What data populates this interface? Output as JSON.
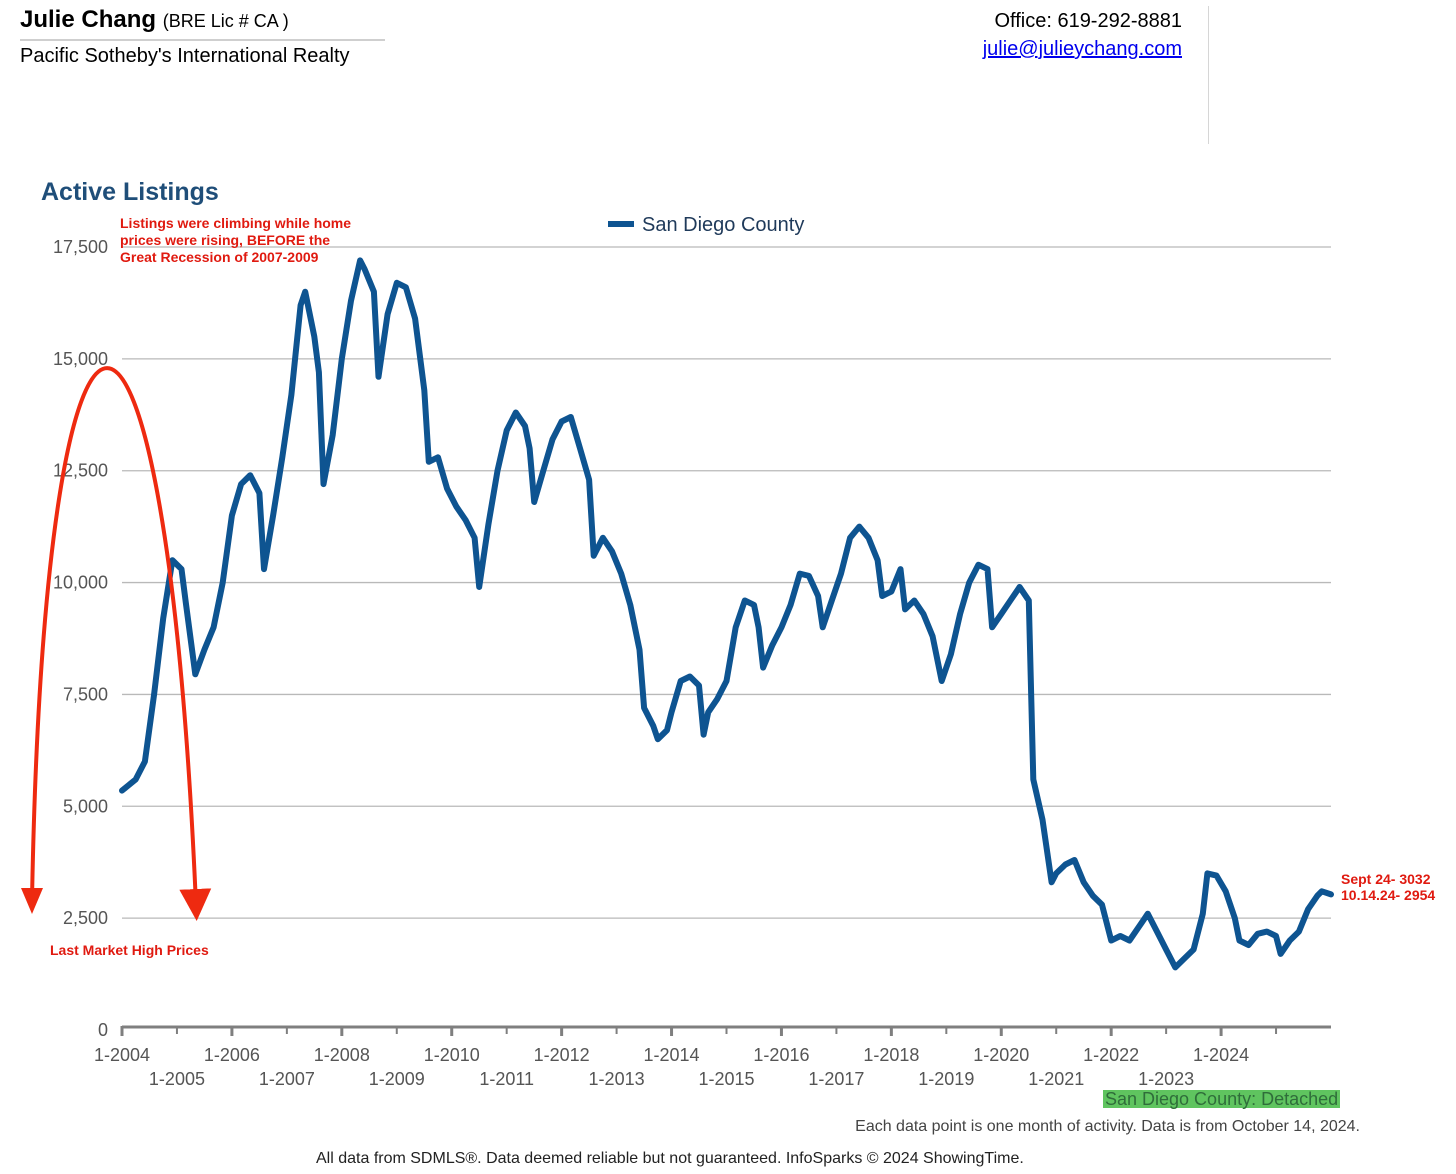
{
  "header": {
    "agent_name": "Julie Chang",
    "license": "(BRE Lic # CA )",
    "brokerage": "Pacific Sotheby's International Realty",
    "office_phone": "Office: 619-292-8881",
    "email": "julie@julieychang.com"
  },
  "annotations": {
    "top_note": [
      "Listings were climbing while home",
      "prices were rising, BEFORE the",
      "Great Recession of 2007-2009"
    ],
    "bottom_note": "Last Market High Prices",
    "end_note": [
      "Sept 24- 3032",
      "10.14.24- 2954"
    ],
    "accent_color": "#e01a10"
  },
  "footer": {
    "source_tag": "San Diego County: Detached",
    "note_monthly": "Each data point is one month of activity. Data is from October 14, 2024.",
    "disclaimer": "All data from SDMLS®. Data deemed reliable but not guaranteed. InfoSparks © 2024 ShowingTime."
  },
  "chart_data": {
    "type": "line",
    "title": "Active Listings",
    "series": [
      {
        "name": "San Diego County",
        "color": "#0e5491",
        "points": [
          [
            "2004-01",
            5350
          ],
          [
            "2004-04",
            5600
          ],
          [
            "2004-06",
            6000
          ],
          [
            "2004-08",
            7500
          ],
          [
            "2004-10",
            9200
          ],
          [
            "2004-12",
            10500
          ],
          [
            "2005-02",
            10300
          ],
          [
            "2005-03",
            9500
          ],
          [
            "2005-05",
            7950
          ],
          [
            "2005-07",
            8500
          ],
          [
            "2005-09",
            9000
          ],
          [
            "2005-11",
            10000
          ],
          [
            "2006-01",
            11500
          ],
          [
            "2006-03",
            12200
          ],
          [
            "2006-05",
            12400
          ],
          [
            "2006-07",
            12000
          ],
          [
            "2006-08",
            10300
          ],
          [
            "2006-10",
            11500
          ],
          [
            "2006-12",
            12800
          ],
          [
            "2007-02",
            14200
          ],
          [
            "2007-04",
            16200
          ],
          [
            "2007-05",
            16500
          ],
          [
            "2007-07",
            15500
          ],
          [
            "2007-08",
            14700
          ],
          [
            "2007-09",
            12200
          ],
          [
            "2007-11",
            13300
          ],
          [
            "2008-01",
            15000
          ],
          [
            "2008-03",
            16300
          ],
          [
            "2008-05",
            17200
          ],
          [
            "2008-06",
            17000
          ],
          [
            "2008-08",
            16500
          ],
          [
            "2008-09",
            14600
          ],
          [
            "2008-11",
            16000
          ],
          [
            "2009-01",
            16700
          ],
          [
            "2009-03",
            16600
          ],
          [
            "2009-05",
            15900
          ],
          [
            "2009-07",
            14300
          ],
          [
            "2009-08",
            12700
          ],
          [
            "2009-10",
            12800
          ],
          [
            "2009-12",
            12100
          ],
          [
            "2010-02",
            11700
          ],
          [
            "2010-04",
            11400
          ],
          [
            "2010-06",
            11000
          ],
          [
            "2010-07",
            9900
          ],
          [
            "2010-09",
            11300
          ],
          [
            "2010-11",
            12500
          ],
          [
            "2011-01",
            13400
          ],
          [
            "2011-03",
            13800
          ],
          [
            "2011-05",
            13500
          ],
          [
            "2011-06",
            13000
          ],
          [
            "2011-07",
            11800
          ],
          [
            "2011-09",
            12500
          ],
          [
            "2011-11",
            13200
          ],
          [
            "2012-01",
            13600
          ],
          [
            "2012-03",
            13700
          ],
          [
            "2012-05",
            13000
          ],
          [
            "2012-07",
            12300
          ],
          [
            "2012-08",
            10600
          ],
          [
            "2012-10",
            11000
          ],
          [
            "2012-12",
            10700
          ],
          [
            "2013-02",
            10200
          ],
          [
            "2013-04",
            9500
          ],
          [
            "2013-06",
            8500
          ],
          [
            "2013-07",
            7200
          ],
          [
            "2013-09",
            6800
          ],
          [
            "2013-10",
            6500
          ],
          [
            "2013-12",
            6700
          ],
          [
            "2014-01",
            7100
          ],
          [
            "2014-03",
            7800
          ],
          [
            "2014-05",
            7900
          ],
          [
            "2014-07",
            7700
          ],
          [
            "2014-08",
            6600
          ],
          [
            "2014-09",
            7100
          ],
          [
            "2014-11",
            7400
          ],
          [
            "2015-01",
            7800
          ],
          [
            "2015-03",
            9000
          ],
          [
            "2015-05",
            9600
          ],
          [
            "2015-07",
            9500
          ],
          [
            "2015-08",
            9000
          ],
          [
            "2015-09",
            8100
          ],
          [
            "2015-11",
            8600
          ],
          [
            "2016-01",
            9000
          ],
          [
            "2016-03",
            9500
          ],
          [
            "2016-05",
            10200
          ],
          [
            "2016-07",
            10150
          ],
          [
            "2016-09",
            9700
          ],
          [
            "2016-10",
            9000
          ],
          [
            "2016-12",
            9600
          ],
          [
            "2017-02",
            10200
          ],
          [
            "2017-04",
            11000
          ],
          [
            "2017-06",
            11250
          ],
          [
            "2017-08",
            11000
          ],
          [
            "2017-10",
            10500
          ],
          [
            "2017-11",
            9700
          ],
          [
            "2018-01",
            9800
          ],
          [
            "2018-03",
            10300
          ],
          [
            "2018-04",
            9400
          ],
          [
            "2018-06",
            9600
          ],
          [
            "2018-08",
            9300
          ],
          [
            "2018-10",
            8800
          ],
          [
            "2018-12",
            7800
          ],
          [
            "2019-02",
            8400
          ],
          [
            "2019-04",
            9300
          ],
          [
            "2019-06",
            10000
          ],
          [
            "2019-08",
            10400
          ],
          [
            "2019-10",
            10300
          ],
          [
            "2019-11",
            9000
          ],
          [
            "2020-01",
            9300
          ],
          [
            "2020-03",
            9600
          ],
          [
            "2020-05",
            9900
          ],
          [
            "2020-07",
            9600
          ],
          [
            "2020-08",
            5600
          ],
          [
            "2020-10",
            4700
          ],
          [
            "2020-12",
            3300
          ],
          [
            "2021-01",
            3500
          ],
          [
            "2021-03",
            3700
          ],
          [
            "2021-05",
            3800
          ],
          [
            "2021-07",
            3300
          ],
          [
            "2021-09",
            3000
          ],
          [
            "2021-11",
            2800
          ],
          [
            "2022-01",
            2000
          ],
          [
            "2022-03",
            2100
          ],
          [
            "2022-05",
            2000
          ],
          [
            "2022-07",
            2300
          ],
          [
            "2022-09",
            2600
          ],
          [
            "2022-11",
            2200
          ],
          [
            "2023-01",
            1800
          ],
          [
            "2023-03",
            1400
          ],
          [
            "2023-05",
            1600
          ],
          [
            "2023-07",
            1800
          ],
          [
            "2023-09",
            2600
          ],
          [
            "2023-10",
            3500
          ],
          [
            "2023-12",
            3450
          ],
          [
            "2024-02",
            3100
          ],
          [
            "2024-04",
            2500
          ],
          [
            "2024-05",
            2000
          ],
          [
            "2024-07",
            1900
          ],
          [
            "2024-09",
            2150
          ],
          [
            "2024-11",
            2200
          ],
          [
            "2025-01",
            2100
          ],
          [
            "2025-02",
            1700
          ],
          [
            "2025-04",
            2000
          ],
          [
            "2025-06",
            2200
          ],
          [
            "2025-08",
            2700
          ],
          [
            "2025-10",
            3000
          ],
          [
            "2025-11",
            3100
          ],
          [
            "2026-01",
            3030
          ]
        ]
      }
    ],
    "x_ticks_upper": [
      "1-2004",
      "1-2006",
      "1-2008",
      "1-2010",
      "1-2012",
      "1-2014",
      "1-2016",
      "1-2018",
      "1-2020",
      "1-2022",
      "1-2024"
    ],
    "x_ticks_lower": [
      "1-2005",
      "1-2007",
      "1-2009",
      "1-2011",
      "1-2013",
      "1-2015",
      "1-2017",
      "1-2019",
      "1-2021",
      "1-2023"
    ],
    "y_ticks": [
      "0",
      "2,500",
      "5,000",
      "7,500",
      "10,000",
      "12,500",
      "15,000",
      "17,500"
    ],
    "ylim": [
      0,
      17500
    ],
    "grid": true,
    "legend": "top-center"
  }
}
